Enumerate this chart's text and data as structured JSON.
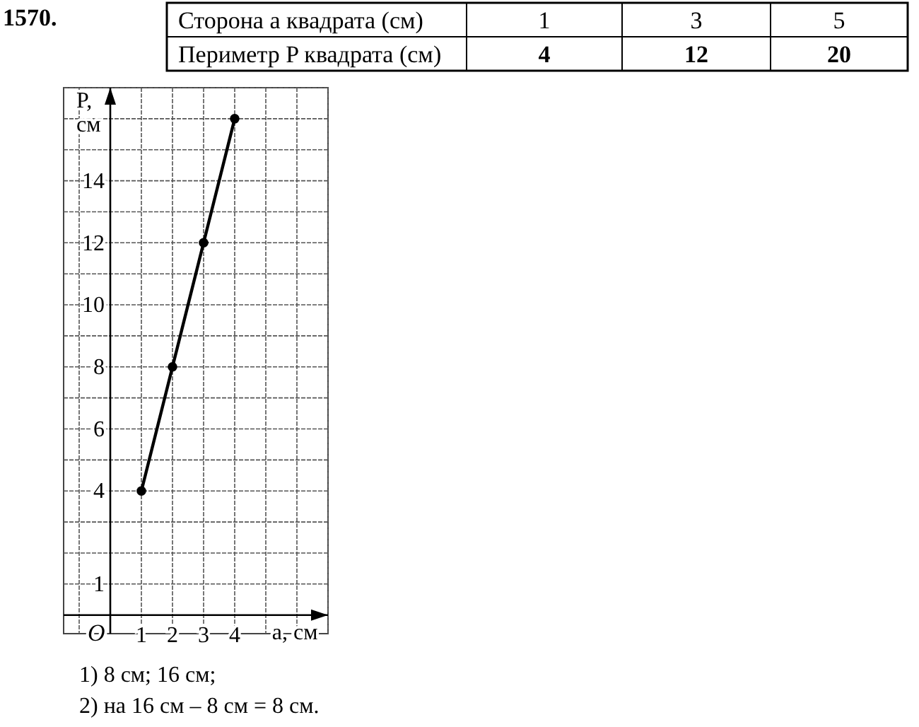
{
  "chart_data": {
    "type": "line",
    "title": "1570.",
    "xlabel": "a, см",
    "ylabel": "P, см",
    "x": [
      1,
      2,
      3,
      4
    ],
    "series": [
      {
        "color": "#000000",
        "values": [
          4,
          8,
          12,
          16
        ]
      }
    ],
    "xlim": [
      -1.5,
      7
    ],
    "ylim": [
      -0.6,
      17
    ],
    "xticks": [
      {
        "value": -1,
        "label": null
      },
      1,
      2,
      3,
      4,
      {
        "value": 5,
        "label": null
      },
      {
        "value": 6,
        "label": null
      },
      {
        "value": 7,
        "label": null
      }
    ],
    "yticks": [
      1,
      {
        "value": 2,
        "label": null
      },
      {
        "value": 3,
        "label": null
      },
      4,
      {
        "value": 5,
        "label": null
      },
      6,
      {
        "value": 7,
        "label": null
      },
      8,
      {
        "value": 9,
        "label": null
      },
      10,
      {
        "value": 11,
        "label": null
      },
      12,
      {
        "value": 13,
        "label": null
      },
      14,
      {
        "value": 15,
        "label": null
      },
      {
        "value": 16,
        "label": null
      },
      {
        "value": 17,
        "label": null
      }
    ],
    "grid": true,
    "marker": "circle",
    "line_style": "solid",
    "annotations": [
      "Сторона a квадрата (см)",
      "1",
      "3",
      "5",
      "Периметр P квадрата (см)",
      "4",
      "12",
      "20",
      "1) 8 см; 16 см;",
      "2) на 16 см – 8 см = 8 см.",
      "O"
    ]
  }
}
